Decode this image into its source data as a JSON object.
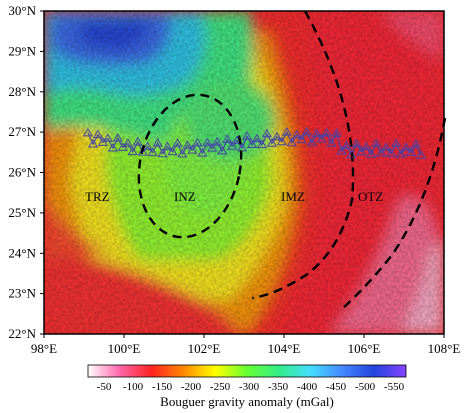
{
  "map": {
    "x_ticks": [
      "98°E",
      "100°E",
      "102°E",
      "104°E",
      "106°E",
      "108°E"
    ],
    "y_ticks": [
      "30°N",
      "29°N",
      "28°N",
      "27°N",
      "26°N",
      "25°N",
      "24°N",
      "23°N",
      "22°N"
    ],
    "zones": [
      "TRZ",
      "INZ",
      "IMZ",
      "OTZ"
    ]
  },
  "colorbar": {
    "labels": [
      "-50",
      "-100",
      "-150",
      "-200",
      "-250",
      "-300",
      "-350",
      "-400",
      "-450",
      "-500",
      "-550"
    ],
    "title": "Bouguer gravity anomaly (mGal)"
  },
  "colors": {
    "scale": [
      "#ffffff",
      "#ff66aa",
      "#ff2222",
      "#ff8800",
      "#ffff00",
      "#66ff33",
      "#33ee88",
      "#44ddff",
      "#4488ff",
      "#2244dd",
      "#8844ff"
    ],
    "profile": "#4444aa",
    "boundary": "#000000"
  }
}
